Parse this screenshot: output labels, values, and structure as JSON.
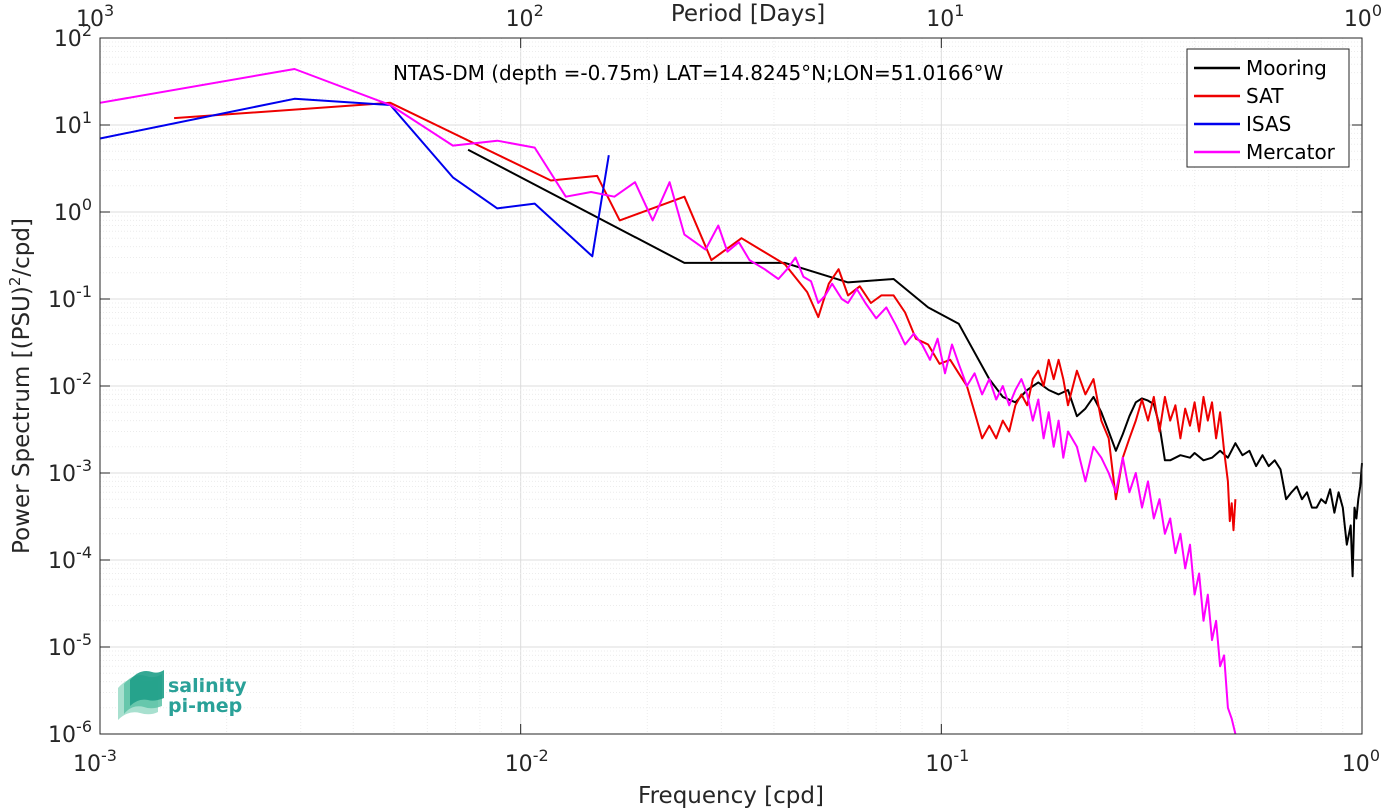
{
  "chart_data": {
    "type": "line",
    "title": "NTAS-DM (depth =-0.75m) LAT=14.8245°N;LON=51.0166°W",
    "xlabel": "Frequency [cpd]",
    "ylabel": "Power Spectrum [(PSU)",
    "ylabel_sup": "2",
    "ylabel_tail": "/cpd]",
    "x2label": "Period [Days]",
    "xscale": "log",
    "yscale": "log",
    "xlim": [
      0.001,
      1
    ],
    "ylim": [
      1e-06,
      100
    ],
    "grid": true,
    "legend_position": "top-right",
    "x_ticks": [
      {
        "v": 0.001,
        "base": "10",
        "exp": "-3"
      },
      {
        "v": 0.01,
        "base": "10",
        "exp": "-2"
      },
      {
        "v": 0.1,
        "base": "10",
        "exp": "-1"
      },
      {
        "v": 1,
        "base": "10",
        "exp": "0"
      }
    ],
    "y_ticks": [
      {
        "v": 100,
        "base": "10",
        "exp": "2"
      },
      {
        "v": 10,
        "base": "10",
        "exp": "1"
      },
      {
        "v": 1,
        "base": "10",
        "exp": "0"
      },
      {
        "v": 0.1,
        "base": "10",
        "exp": "-1"
      },
      {
        "v": 0.01,
        "base": "10",
        "exp": "-2"
      },
      {
        "v": 0.001,
        "base": "10",
        "exp": "-3"
      },
      {
        "v": 0.0001,
        "base": "10",
        "exp": "-4"
      },
      {
        "v": 1e-05,
        "base": "10",
        "exp": "-5"
      },
      {
        "v": 1e-06,
        "base": "10",
        "exp": "-6"
      }
    ],
    "top_ticks": [
      {
        "v": 0.001,
        "base": "10",
        "exp": "3"
      },
      {
        "v": 0.01,
        "base": "10",
        "exp": "2"
      },
      {
        "v": 0.1,
        "base": "10",
        "exp": "1"
      },
      {
        "v": 1,
        "base": "10",
        "exp": "0"
      }
    ],
    "series": [
      {
        "name": "Mooring",
        "color": "#000000",
        "points": [
          [
            0.0075,
            5.2
          ],
          [
            0.0245,
            0.26
          ],
          [
            0.033,
            0.26
          ],
          [
            0.0425,
            0.26
          ],
          [
            0.06,
            0.155
          ],
          [
            0.077,
            0.17
          ],
          [
            0.093,
            0.08
          ],
          [
            0.11,
            0.052
          ],
          [
            0.13,
            0.012
          ],
          [
            0.14,
            0.0075
          ],
          [
            0.15,
            0.0065
          ],
          [
            0.16,
            0.009
          ],
          [
            0.17,
            0.011
          ],
          [
            0.18,
            0.009
          ],
          [
            0.19,
            0.008
          ],
          [
            0.2,
            0.009
          ],
          [
            0.21,
            0.0045
          ],
          [
            0.22,
            0.0055
          ],
          [
            0.23,
            0.0075
          ],
          [
            0.24,
            0.005
          ],
          [
            0.25,
            0.003
          ],
          [
            0.26,
            0.0018
          ],
          [
            0.27,
            0.0028
          ],
          [
            0.28,
            0.0045
          ],
          [
            0.29,
            0.0065
          ],
          [
            0.3,
            0.0072
          ],
          [
            0.31,
            0.0068
          ],
          [
            0.32,
            0.0062
          ],
          [
            0.33,
            0.0035
          ],
          [
            0.34,
            0.0014
          ],
          [
            0.35,
            0.0014
          ],
          [
            0.37,
            0.0016
          ],
          [
            0.39,
            0.0015
          ],
          [
            0.4,
            0.0017
          ],
          [
            0.42,
            0.0014
          ],
          [
            0.44,
            0.0015
          ],
          [
            0.46,
            0.0018
          ],
          [
            0.48,
            0.0015
          ],
          [
            0.5,
            0.0022
          ],
          [
            0.52,
            0.0016
          ],
          [
            0.54,
            0.0018
          ],
          [
            0.56,
            0.0012
          ],
          [
            0.58,
            0.0016
          ],
          [
            0.6,
            0.0012
          ],
          [
            0.62,
            0.0014
          ],
          [
            0.64,
            0.0011
          ],
          [
            0.66,
            0.0005
          ],
          [
            0.68,
            0.0006
          ],
          [
            0.7,
            0.0007
          ],
          [
            0.72,
            0.0005
          ],
          [
            0.74,
            0.0006
          ],
          [
            0.76,
            0.0004
          ],
          [
            0.78,
            0.0004
          ],
          [
            0.8,
            0.0005
          ],
          [
            0.82,
            0.00045
          ],
          [
            0.84,
            0.00065
          ],
          [
            0.86,
            0.00035
          ],
          [
            0.88,
            0.0006
          ],
          [
            0.9,
            0.0004
          ],
          [
            0.92,
            0.00015
          ],
          [
            0.94,
            0.00025
          ],
          [
            0.95,
            6.5e-05
          ],
          [
            0.96,
            0.0004
          ],
          [
            0.97,
            0.0003
          ],
          [
            0.98,
            0.0005
          ],
          [
            0.99,
            0.0007
          ],
          [
            1.0,
            0.0013
          ]
        ]
      },
      {
        "name": "SAT",
        "color": "#ee0000",
        "points": [
          [
            0.0015,
            12
          ],
          [
            0.0049,
            18
          ],
          [
            0.0118,
            2.3
          ],
          [
            0.0152,
            2.6
          ],
          [
            0.0172,
            0.8
          ],
          [
            0.0245,
            1.5
          ],
          [
            0.0284,
            0.28
          ],
          [
            0.0335,
            0.5
          ],
          [
            0.0425,
            0.25
          ],
          [
            0.048,
            0.12
          ],
          [
            0.051,
            0.062
          ],
          [
            0.054,
            0.15
          ],
          [
            0.057,
            0.22
          ],
          [
            0.06,
            0.11
          ],
          [
            0.064,
            0.14
          ],
          [
            0.068,
            0.09
          ],
          [
            0.072,
            0.11
          ],
          [
            0.077,
            0.11
          ],
          [
            0.082,
            0.07
          ],
          [
            0.087,
            0.035
          ],
          [
            0.093,
            0.03
          ],
          [
            0.099,
            0.018
          ],
          [
            0.105,
            0.02
          ],
          [
            0.11,
            0.014
          ],
          [
            0.115,
            0.01
          ],
          [
            0.12,
            0.005
          ],
          [
            0.125,
            0.0025
          ],
          [
            0.13,
            0.0035
          ],
          [
            0.135,
            0.0025
          ],
          [
            0.14,
            0.004
          ],
          [
            0.145,
            0.003
          ],
          [
            0.15,
            0.006
          ],
          [
            0.155,
            0.008
          ],
          [
            0.16,
            0.006
          ],
          [
            0.165,
            0.012
          ],
          [
            0.17,
            0.015
          ],
          [
            0.175,
            0.01
          ],
          [
            0.18,
            0.02
          ],
          [
            0.185,
            0.012
          ],
          [
            0.19,
            0.02
          ],
          [
            0.195,
            0.012
          ],
          [
            0.2,
            0.006
          ],
          [
            0.21,
            0.015
          ],
          [
            0.22,
            0.008
          ],
          [
            0.23,
            0.012
          ],
          [
            0.24,
            0.004
          ],
          [
            0.25,
            0.0025
          ],
          [
            0.26,
            0.0005
          ],
          [
            0.27,
            0.0015
          ],
          [
            0.28,
            0.0025
          ],
          [
            0.29,
            0.004
          ],
          [
            0.3,
            0.007
          ],
          [
            0.31,
            0.004
          ],
          [
            0.32,
            0.0075
          ],
          [
            0.33,
            0.003
          ],
          [
            0.34,
            0.0075
          ],
          [
            0.35,
            0.004
          ],
          [
            0.36,
            0.006
          ],
          [
            0.37,
            0.0025
          ],
          [
            0.38,
            0.0055
          ],
          [
            0.39,
            0.0035
          ],
          [
            0.4,
            0.0065
          ],
          [
            0.41,
            0.003
          ],
          [
            0.42,
            0.0075
          ],
          [
            0.43,
            0.004
          ],
          [
            0.44,
            0.0065
          ],
          [
            0.45,
            0.0025
          ],
          [
            0.46,
            0.005
          ],
          [
            0.47,
            0.0018
          ],
          [
            0.48,
            0.0008
          ],
          [
            0.485,
            0.00028
          ],
          [
            0.49,
            0.00045
          ],
          [
            0.495,
            0.00022
          ],
          [
            0.5,
            0.0005
          ]
        ]
      },
      {
        "name": "ISAS",
        "color": "#0000ee",
        "points": [
          [
            0.001,
            7
          ],
          [
            0.0029,
            20
          ],
          [
            0.0049,
            17
          ],
          [
            0.0069,
            2.5
          ],
          [
            0.0088,
            1.1
          ],
          [
            0.0108,
            1.25
          ],
          [
            0.0148,
            0.31
          ],
          [
            0.0162,
            4.5
          ]
        ]
      },
      {
        "name": "Mercator",
        "color": "#ff00ff",
        "points": [
          [
            0.001,
            18
          ],
          [
            0.0029,
            44
          ],
          [
            0.0049,
            17
          ],
          [
            0.0069,
            5.8
          ],
          [
            0.0088,
            6.6
          ],
          [
            0.0108,
            5.5
          ],
          [
            0.0128,
            1.5
          ],
          [
            0.0147,
            1.7
          ],
          [
            0.0167,
            1.5
          ],
          [
            0.0187,
            2.2
          ],
          [
            0.0206,
            0.8
          ],
          [
            0.0226,
            2.2
          ],
          [
            0.0245,
            0.55
          ],
          [
            0.0275,
            0.37
          ],
          [
            0.0295,
            0.7
          ],
          [
            0.031,
            0.35
          ],
          [
            0.033,
            0.45
          ],
          [
            0.035,
            0.28
          ],
          [
            0.038,
            0.22
          ],
          [
            0.041,
            0.17
          ],
          [
            0.043,
            0.22
          ],
          [
            0.045,
            0.3
          ],
          [
            0.047,
            0.18
          ],
          [
            0.049,
            0.16
          ],
          [
            0.051,
            0.09
          ],
          [
            0.053,
            0.11
          ],
          [
            0.055,
            0.15
          ],
          [
            0.058,
            0.1
          ],
          [
            0.06,
            0.09
          ],
          [
            0.063,
            0.13
          ],
          [
            0.066,
            0.09
          ],
          [
            0.07,
            0.06
          ],
          [
            0.074,
            0.08
          ],
          [
            0.078,
            0.05
          ],
          [
            0.082,
            0.03
          ],
          [
            0.086,
            0.04
          ],
          [
            0.09,
            0.03
          ],
          [
            0.094,
            0.02
          ],
          [
            0.098,
            0.035
          ],
          [
            0.102,
            0.014
          ],
          [
            0.106,
            0.03
          ],
          [
            0.11,
            0.018
          ],
          [
            0.115,
            0.01
          ],
          [
            0.12,
            0.014
          ],
          [
            0.125,
            0.008
          ],
          [
            0.13,
            0.012
          ],
          [
            0.135,
            0.007
          ],
          [
            0.14,
            0.01
          ],
          [
            0.145,
            0.006
          ],
          [
            0.15,
            0.009
          ],
          [
            0.155,
            0.012
          ],
          [
            0.16,
            0.008
          ],
          [
            0.165,
            0.004
          ],
          [
            0.17,
            0.007
          ],
          [
            0.175,
            0.0025
          ],
          [
            0.18,
            0.005
          ],
          [
            0.185,
            0.002
          ],
          [
            0.19,
            0.004
          ],
          [
            0.195,
            0.0015
          ],
          [
            0.2,
            0.003
          ],
          [
            0.21,
            0.002
          ],
          [
            0.22,
            0.0008
          ],
          [
            0.23,
            0.002
          ],
          [
            0.24,
            0.0015
          ],
          [
            0.25,
            0.001
          ],
          [
            0.26,
            0.0006
          ],
          [
            0.27,
            0.0015
          ],
          [
            0.28,
            0.0006
          ],
          [
            0.29,
            0.001
          ],
          [
            0.3,
            0.0004
          ],
          [
            0.31,
            0.0008
          ],
          [
            0.32,
            0.0003
          ],
          [
            0.33,
            0.0005
          ],
          [
            0.34,
            0.0002
          ],
          [
            0.35,
            0.0003
          ],
          [
            0.36,
            0.00012
          ],
          [
            0.37,
            0.0002
          ],
          [
            0.38,
            8e-05
          ],
          [
            0.39,
            0.00015
          ],
          [
            0.4,
            4e-05
          ],
          [
            0.41,
            7e-05
          ],
          [
            0.42,
            2e-05
          ],
          [
            0.43,
            4e-05
          ],
          [
            0.44,
            1.2e-05
          ],
          [
            0.45,
            2e-05
          ],
          [
            0.46,
            6e-06
          ],
          [
            0.47,
            8e-06
          ],
          [
            0.48,
            2e-06
          ],
          [
            0.49,
            1.5e-06
          ],
          [
            0.5,
            1e-06
          ]
        ]
      }
    ]
  },
  "logo": {
    "line1": "salinity",
    "line2": "pi-mep"
  }
}
